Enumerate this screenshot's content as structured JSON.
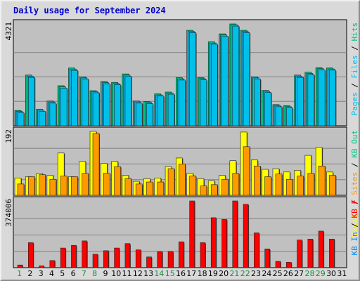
{
  "title": "Daily usage for September 2024",
  "colors": {
    "background": "#d9d9d9",
    "panel": "#c0c0c0",
    "pages": "#00c0e8",
    "files": "#00c0ff",
    "hits": "#00c080",
    "visits": "#ffff00",
    "sites": "#ff9900",
    "kb": "#ff0000",
    "weekend_label": "#208a40",
    "weekday_label": "#000000",
    "title": "#0000cc"
  },
  "chart_data": [
    {
      "type": "bar",
      "panel": "pages-files-hits",
      "ymax_label": "4321",
      "side_legend": [
        {
          "text": "Pages",
          "color": "#00c0e8"
        },
        {
          "text": " / ",
          "color": "#000000"
        },
        {
          "text": "Files",
          "color": "#00c0ff"
        },
        {
          "text": " / ",
          "color": "#000000"
        },
        {
          "text": "Hits",
          "color": "#00c080"
        }
      ],
      "ylim": [
        0,
        4321
      ],
      "categories": [
        "1",
        "2",
        "3",
        "4",
        "5",
        "6",
        "7",
        "8",
        "9",
        "10",
        "11",
        "12",
        "13",
        "14",
        "15",
        "16",
        "17",
        "18",
        "19",
        "20",
        "21",
        "22",
        "23",
        "24",
        "25",
        "26",
        "27",
        "28",
        "29",
        "30",
        "31"
      ],
      "series": [
        {
          "key": "hits",
          "values": [
            650,
            2150,
            700,
            1050,
            1700,
            2450,
            2080,
            1490,
            1880,
            1840,
            2200,
            1050,
            1030,
            1350,
            1430,
            2040,
            4050,
            2040,
            3560,
            3900,
            4321,
            4050,
            2080,
            1500,
            900,
            850,
            2150,
            2270,
            2460,
            2450,
            0
          ]
        },
        {
          "key": "files",
          "values": [
            610,
            2100,
            660,
            1010,
            1650,
            2400,
            2030,
            1450,
            1830,
            1790,
            2150,
            1010,
            990,
            1310,
            1390,
            1990,
            4000,
            2000,
            3510,
            3850,
            4280,
            4000,
            2030,
            1460,
            860,
            810,
            2100,
            2220,
            2420,
            2410,
            0
          ]
        },
        {
          "key": "pages",
          "values": [
            560,
            2050,
            610,
            960,
            1600,
            2350,
            1980,
            1400,
            1780,
            1740,
            2100,
            960,
            940,
            1260,
            1340,
            1940,
            3950,
            1950,
            3460,
            3800,
            4230,
            3950,
            1980,
            1410,
            810,
            760,
            2050,
            2170,
            2370,
            2360,
            0
          ]
        }
      ]
    },
    {
      "type": "bar",
      "panel": "visits-sites",
      "ymax_label": "192",
      "side_legend": [
        {
          "text": "Visits",
          "color": "#ffff00"
        },
        {
          "text": " / ",
          "color": "#000000"
        },
        {
          "text": "Sites",
          "color": "#ff9900"
        },
        {
          "text": " / ",
          "color": "#000000"
        },
        {
          "text": "KB Out",
          "color": "#00c080"
        }
      ],
      "ylim": [
        0,
        192
      ],
      "categories": [
        "1",
        "2",
        "3",
        "4",
        "5",
        "6",
        "7",
        "8",
        "9",
        "10",
        "11",
        "12",
        "13",
        "14",
        "15",
        "16",
        "17",
        "18",
        "19",
        "20",
        "21",
        "22",
        "23",
        "24",
        "25",
        "26",
        "27",
        "28",
        "29",
        "30",
        "31"
      ],
      "series": [
        {
          "key": "visits",
          "values": [
            52,
            56,
            66,
            60,
            127,
            56,
            102,
            192,
            96,
            102,
            60,
            42,
            50,
            52,
            86,
            112,
            66,
            50,
            44,
            60,
            104,
            190,
            106,
            78,
            80,
            70,
            75,
            120,
            144,
            70,
            0
          ]
        },
        {
          "key": "sites",
          "values": [
            34,
            56,
            62,
            48,
            58,
            56,
            66,
            186,
            66,
            86,
            50,
            34,
            40,
            40,
            80,
            94,
            58,
            28,
            32,
            48,
            66,
            146,
            88,
            56,
            64,
            48,
            58,
            66,
            88,
            60,
            0
          ]
        }
      ]
    },
    {
      "type": "bar",
      "panel": "kb",
      "ymax_label": "374006",
      "side_legend": [
        {
          "text": "KB In",
          "color": "#0088ff"
        },
        {
          "text": " / ",
          "color": "#000000"
        },
        {
          "text": "KB F",
          "color": "#ff0000"
        }
      ],
      "ylim": [
        0,
        374006
      ],
      "categories": [
        "1",
        "2",
        "3",
        "4",
        "5",
        "6",
        "7",
        "8",
        "9",
        "10",
        "11",
        "12",
        "13",
        "14",
        "15",
        "16",
        "17",
        "18",
        "19",
        "20",
        "21",
        "22",
        "23",
        "24",
        "25",
        "26",
        "27",
        "28",
        "29",
        "30",
        "31"
      ],
      "series": [
        {
          "key": "kb",
          "values": [
            15000,
            140000,
            10000,
            40000,
            110000,
            125000,
            150000,
            75000,
            95000,
            110000,
            135000,
            100000,
            60000,
            90000,
            90000,
            145000,
            374006,
            140000,
            280000,
            270000,
            374006,
            355000,
            195000,
            105000,
            35000,
            30000,
            155000,
            160000,
            205000,
            160000,
            0
          ]
        }
      ]
    }
  ],
  "x_labels": [
    {
      "text": "1",
      "weekend": true
    },
    {
      "text": "2",
      "weekend": false
    },
    {
      "text": "3",
      "weekend": false
    },
    {
      "text": "4",
      "weekend": false
    },
    {
      "text": "5",
      "weekend": false
    },
    {
      "text": "6",
      "weekend": false
    },
    {
      "text": "7",
      "weekend": true
    },
    {
      "text": "8",
      "weekend": true
    },
    {
      "text": "9",
      "weekend": false
    },
    {
      "text": "10",
      "weekend": false
    },
    {
      "text": "11",
      "weekend": false
    },
    {
      "text": "12",
      "weekend": false
    },
    {
      "text": "13",
      "weekend": false
    },
    {
      "text": "14",
      "weekend": true
    },
    {
      "text": "15",
      "weekend": true
    },
    {
      "text": "16",
      "weekend": false
    },
    {
      "text": "17",
      "weekend": false
    },
    {
      "text": "18",
      "weekend": false
    },
    {
      "text": "19",
      "weekend": false
    },
    {
      "text": "20",
      "weekend": false
    },
    {
      "text": "21",
      "weekend": true
    },
    {
      "text": "22",
      "weekend": true
    },
    {
      "text": "23",
      "weekend": false
    },
    {
      "text": "24",
      "weekend": false
    },
    {
      "text": "25",
      "weekend": false
    },
    {
      "text": "26",
      "weekend": false
    },
    {
      "text": "27",
      "weekend": false
    },
    {
      "text": "28",
      "weekend": true
    },
    {
      "text": "29",
      "weekend": true
    },
    {
      "text": "30",
      "weekend": false
    },
    {
      "text": "31",
      "weekend": false
    }
  ]
}
